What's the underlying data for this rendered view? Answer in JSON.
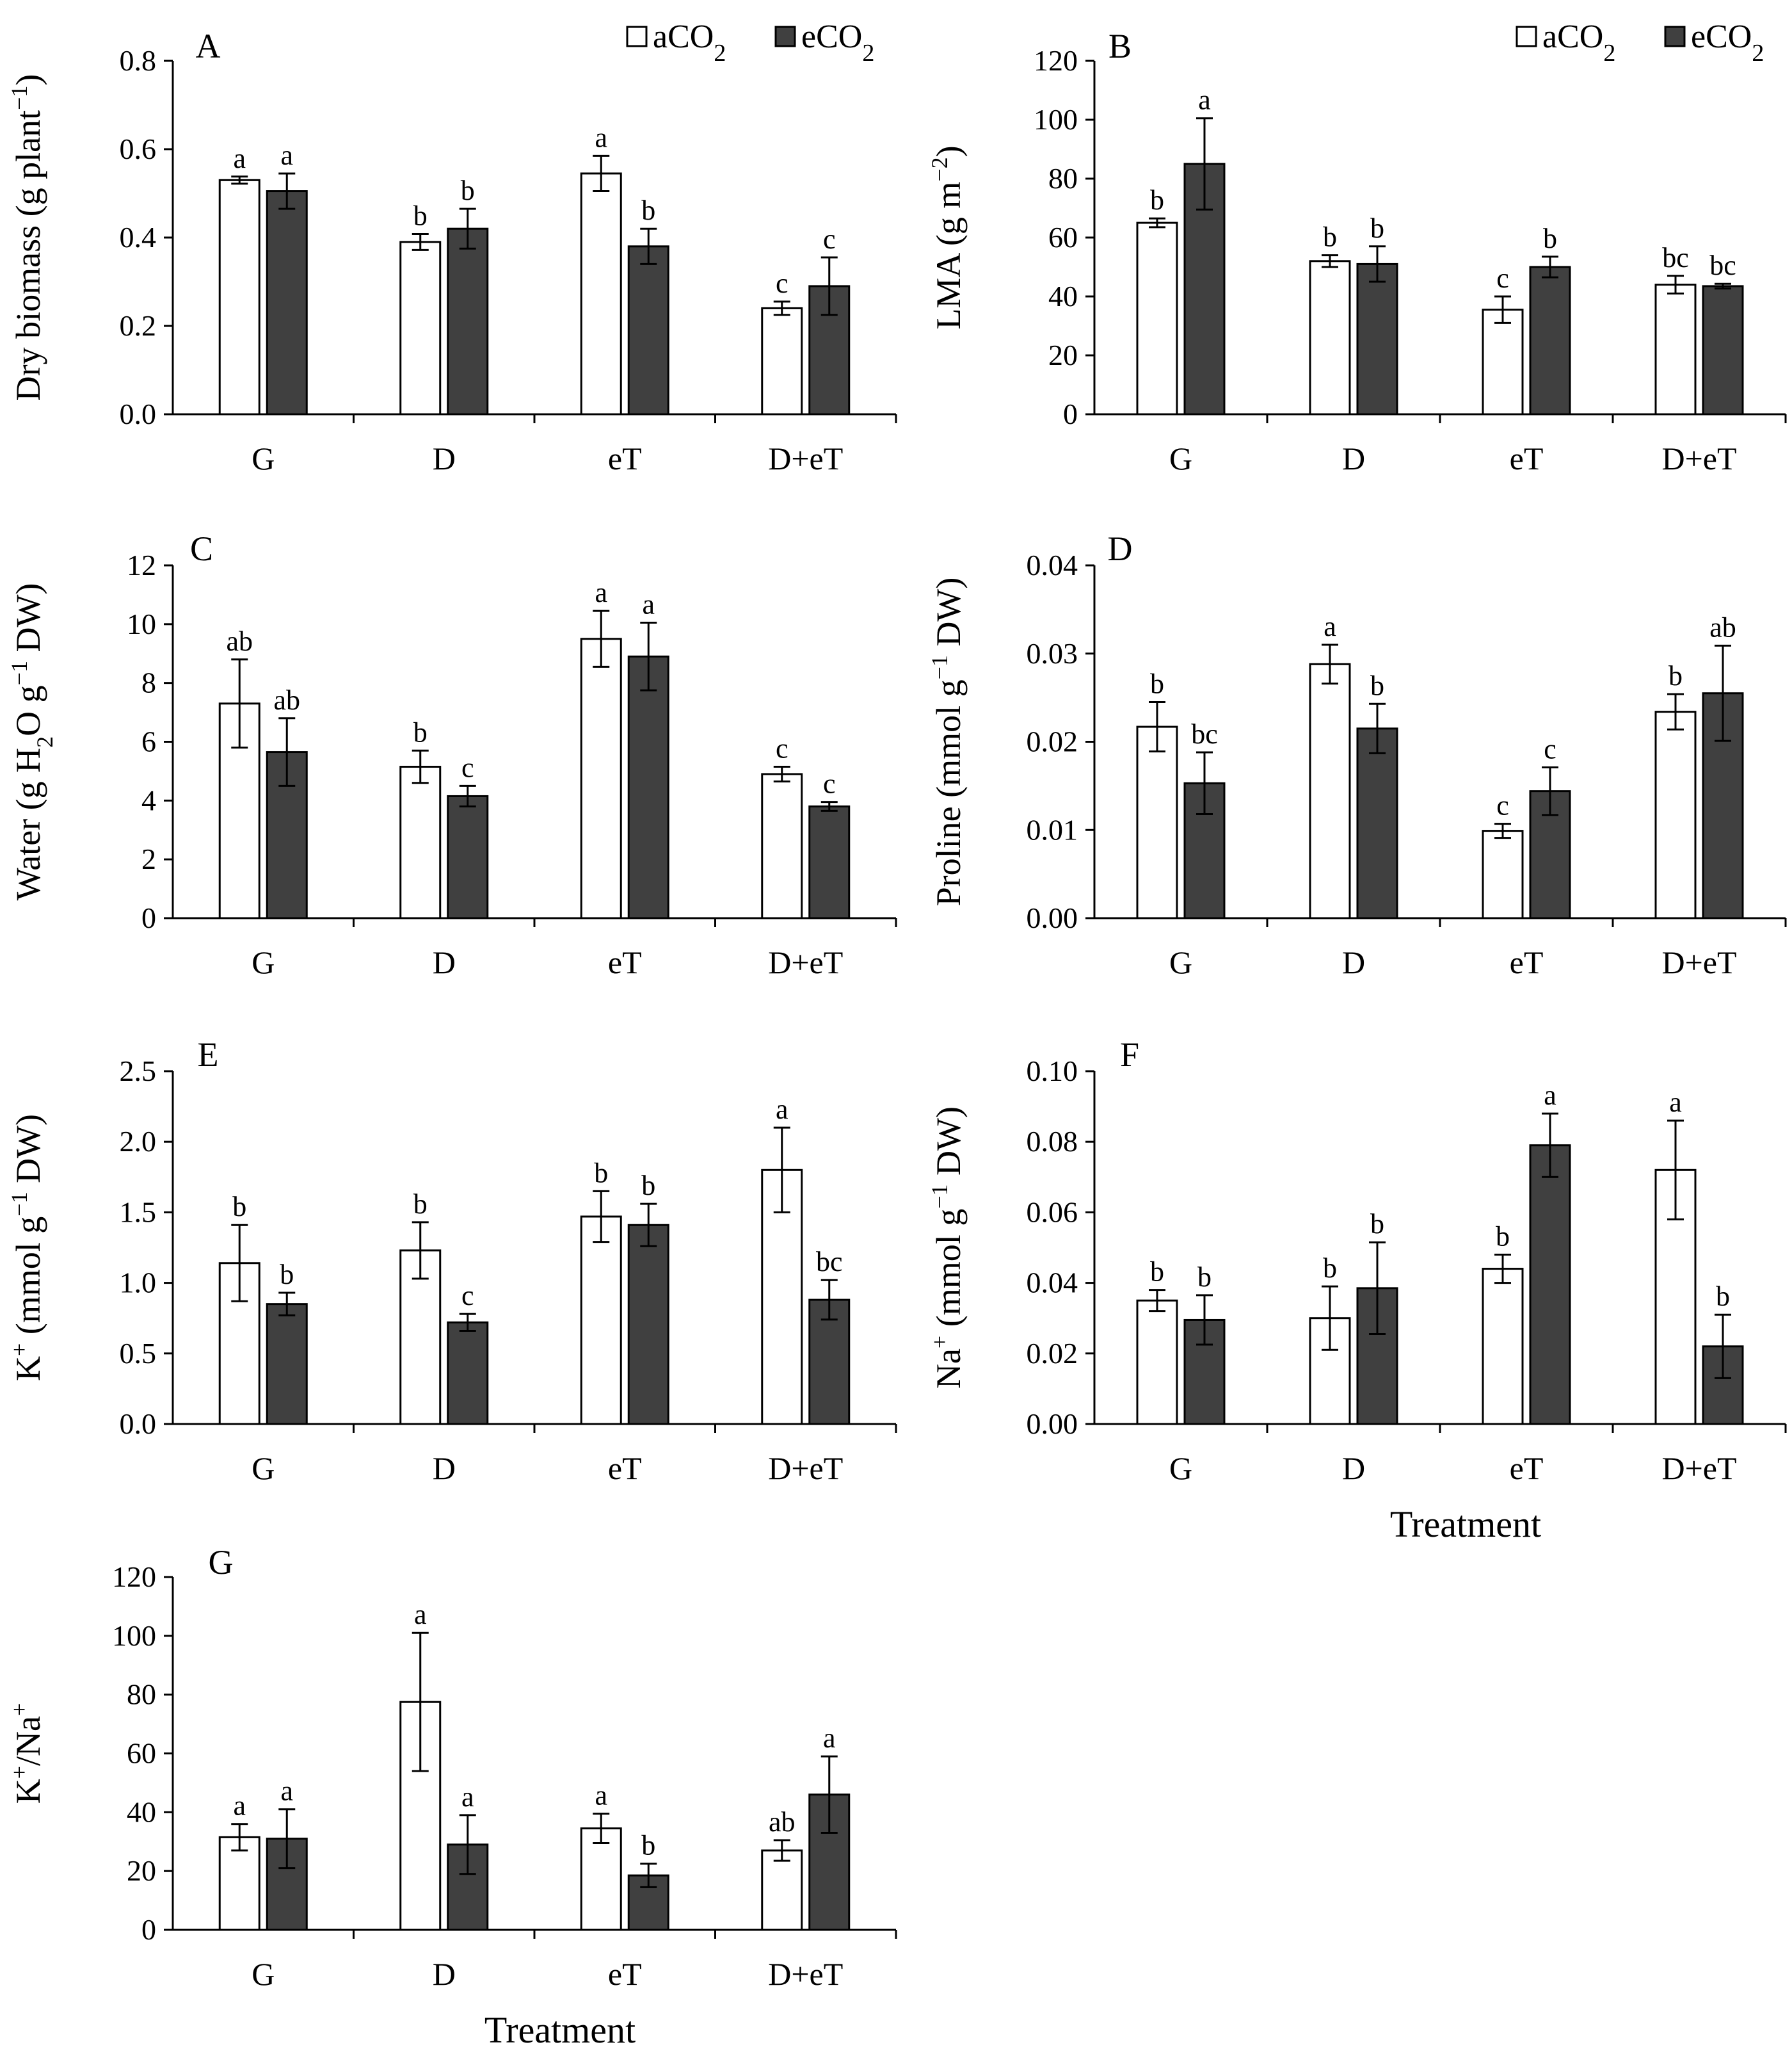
{
  "figure": {
    "legend": [
      {
        "name": "aCO2",
        "label_main": "aCO",
        "label_sub": "2",
        "color": "#ffffff"
      },
      {
        "name": "eCO2",
        "label_main": "eCO",
        "label_sub": "2",
        "color": "#404040"
      }
    ]
  },
  "chart_data": [
    {
      "type": "bar",
      "panel": "A",
      "ylabel": {
        "main": "Dry biomass (g plant",
        "sup": "−1",
        "tail": ")"
      },
      "xlabel": "",
      "categories": [
        "G",
        "D",
        "eT",
        "D+eT"
      ],
      "ylim": [
        0,
        0.8
      ],
      "yticks": [
        "0.0",
        "0.2",
        "0.4",
        "0.6",
        "0.8"
      ],
      "show_legend": true,
      "series": [
        {
          "name": "aCO2",
          "values": [
            0.53,
            0.39,
            0.545,
            0.24
          ],
          "errors": [
            0.008,
            0.018,
            0.04,
            0.015
          ],
          "letters": [
            "a",
            "b",
            "a",
            "c"
          ]
        },
        {
          "name": "eCO2",
          "values": [
            0.505,
            0.42,
            0.38,
            0.29
          ],
          "errors": [
            0.04,
            0.045,
            0.04,
            0.065
          ],
          "letters": [
            "a",
            "b",
            "b",
            "c"
          ]
        }
      ]
    },
    {
      "type": "bar",
      "panel": "B",
      "ylabel": {
        "main": "LMA (g m",
        "sup": "−2",
        "tail": ")"
      },
      "xlabel": "",
      "categories": [
        "G",
        "D",
        "eT",
        "D+eT"
      ],
      "ylim": [
        0,
        120
      ],
      "yticks": [
        "0",
        "20",
        "40",
        "60",
        "80",
        "100",
        "120"
      ],
      "show_legend": true,
      "series": [
        {
          "name": "aCO2",
          "values": [
            65,
            52,
            35.5,
            44
          ],
          "errors": [
            1.5,
            2,
            4.5,
            3
          ],
          "letters": [
            "b",
            "b",
            "c",
            "bc"
          ]
        },
        {
          "name": "eCO2",
          "values": [
            85,
            51,
            50,
            43.5
          ],
          "errors": [
            15.5,
            6,
            3.5,
            0.8
          ],
          "letters": [
            "a",
            "b",
            "b",
            "bc"
          ]
        }
      ]
    },
    {
      "type": "bar",
      "panel": "C",
      "ylabel": {
        "main": "Water (g H",
        "sub": "2",
        "main2": "O g",
        "sup": "−1",
        "tail": " DW)"
      },
      "xlabel": "",
      "categories": [
        "G",
        "D",
        "eT",
        "D+eT"
      ],
      "ylim": [
        0,
        12
      ],
      "yticks": [
        "0",
        "2",
        "4",
        "6",
        "8",
        "10",
        "12"
      ],
      "show_legend": false,
      "series": [
        {
          "name": "aCO2",
          "values": [
            7.3,
            5.15,
            9.5,
            4.9
          ],
          "errors": [
            1.5,
            0.55,
            0.95,
            0.25
          ],
          "letters": [
            "ab",
            "b",
            "a",
            "c"
          ]
        },
        {
          "name": "eCO2",
          "values": [
            5.65,
            4.15,
            8.9,
            3.8
          ],
          "errors": [
            1.15,
            0.35,
            1.15,
            0.15
          ],
          "letters": [
            "ab",
            "c",
            "a",
            "c"
          ]
        }
      ]
    },
    {
      "type": "bar",
      "panel": "D",
      "ylabel": {
        "main": "Proline (mmol g",
        "sup": "−1",
        "tail": " DW)"
      },
      "xlabel": "",
      "categories": [
        "G",
        "D",
        "eT",
        "D+eT"
      ],
      "ylim": [
        0,
        0.04
      ],
      "yticks": [
        "0.00",
        "0.01",
        "0.02",
        "0.03",
        "0.04"
      ],
      "show_legend": false,
      "series": [
        {
          "name": "aCO2",
          "values": [
            0.0217,
            0.0288,
            0.0099,
            0.0234
          ],
          "errors": [
            0.0028,
            0.0022,
            0.0008,
            0.002
          ],
          "letters": [
            "b",
            "a",
            "c",
            "b"
          ]
        },
        {
          "name": "eCO2",
          "values": [
            0.0153,
            0.0215,
            0.0144,
            0.0255
          ],
          "errors": [
            0.0035,
            0.0028,
            0.0027,
            0.0054
          ],
          "letters": [
            "bc",
            "b",
            "c",
            "ab"
          ]
        }
      ]
    },
    {
      "type": "bar",
      "panel": "E",
      "ylabel": {
        "main": "K",
        "sup1": "+",
        "main2": " (mmol g",
        "sup": "−1",
        "tail": " DW)"
      },
      "xlabel": "",
      "categories": [
        "G",
        "D",
        "eT",
        "D+eT"
      ],
      "ylim": [
        0,
        2.5
      ],
      "yticks": [
        "0.0",
        "0.5",
        "1.0",
        "1.5",
        "2.0",
        "2.5"
      ],
      "show_legend": false,
      "series": [
        {
          "name": "aCO2",
          "values": [
            1.14,
            1.23,
            1.47,
            1.8
          ],
          "errors": [
            0.27,
            0.2,
            0.18,
            0.3
          ],
          "letters": [
            "b",
            "b",
            "b",
            "a"
          ]
        },
        {
          "name": "eCO2",
          "values": [
            0.85,
            0.72,
            1.41,
            0.88
          ],
          "errors": [
            0.08,
            0.06,
            0.15,
            0.14
          ],
          "letters": [
            "b",
            "c",
            "b",
            "bc"
          ]
        }
      ]
    },
    {
      "type": "bar",
      "panel": "F",
      "ylabel": {
        "main": "Na",
        "sup1": "+",
        "main2": " (mmol g",
        "sup": "−1",
        "tail": " DW)"
      },
      "xlabel": "Treatment",
      "categories": [
        "G",
        "D",
        "eT",
        "D+eT"
      ],
      "ylim": [
        0,
        0.1
      ],
      "yticks": [
        "0.00",
        "0.02",
        "0.04",
        "0.06",
        "0.08",
        "0.10"
      ],
      "show_legend": false,
      "series": [
        {
          "name": "aCO2",
          "values": [
            0.035,
            0.03,
            0.044,
            0.072
          ],
          "errors": [
            0.003,
            0.009,
            0.004,
            0.014
          ],
          "letters": [
            "b",
            "b",
            "b",
            "a"
          ]
        },
        {
          "name": "eCO2",
          "values": [
            0.0295,
            0.0385,
            0.079,
            0.022
          ],
          "errors": [
            0.007,
            0.013,
            0.009,
            0.009
          ],
          "letters": [
            "b",
            "b",
            "a",
            "b"
          ]
        }
      ]
    },
    {
      "type": "bar",
      "panel": "G",
      "ylabel": {
        "main": "K",
        "sup1": "+",
        "main2": "/Na",
        "sup": "+",
        "tail": ""
      },
      "xlabel": "Treatment",
      "categories": [
        "G",
        "D",
        "eT",
        "D+eT"
      ],
      "ylim": [
        0,
        120
      ],
      "yticks": [
        "0",
        "20",
        "40",
        "60",
        "80",
        "100",
        "120"
      ],
      "show_legend": false,
      "series": [
        {
          "name": "aCO2",
          "values": [
            31.5,
            77.5,
            34.5,
            27
          ],
          "errors": [
            4.5,
            23.5,
            5,
            3.5
          ],
          "letters": [
            "a",
            "a",
            "a",
            "ab"
          ]
        },
        {
          "name": "eCO2",
          "values": [
            31,
            29,
            18.5,
            46
          ],
          "errors": [
            10,
            10,
            4,
            13
          ],
          "letters": [
            "a",
            "a",
            "b",
            "a"
          ]
        }
      ]
    }
  ]
}
